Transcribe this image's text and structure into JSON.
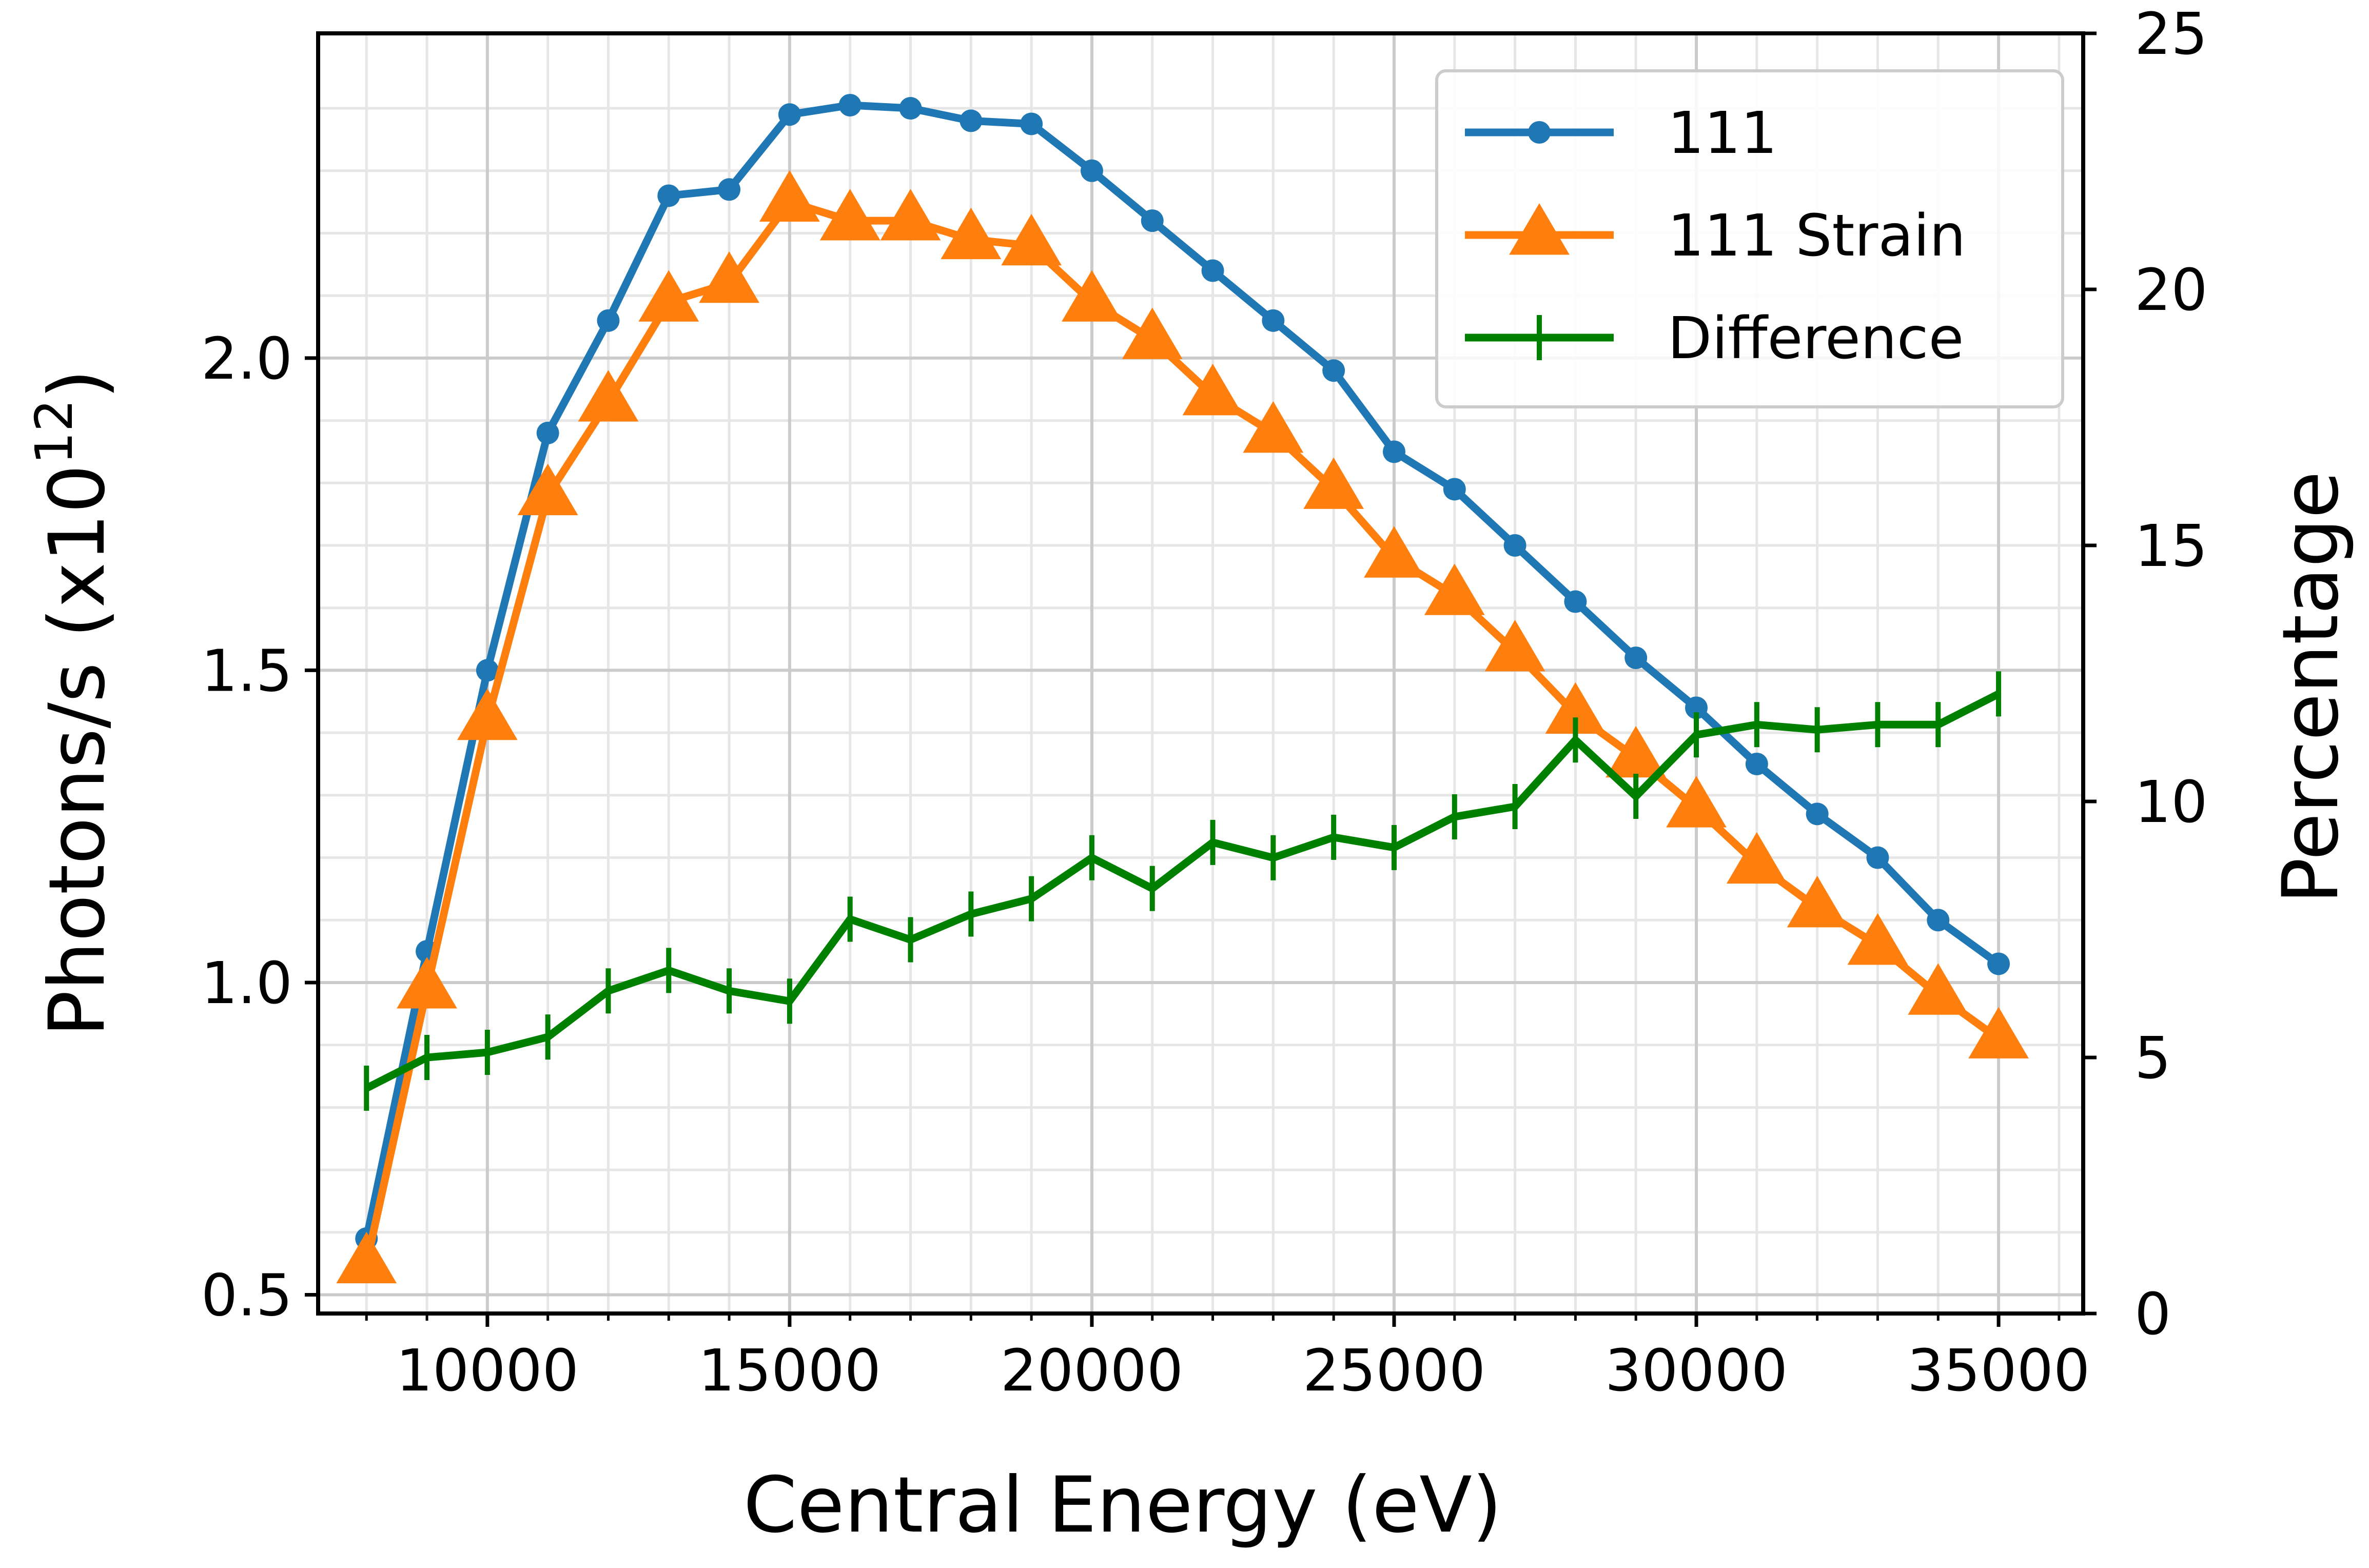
{
  "chart_data": {
    "type": "line",
    "xlabel": "Central Energy (eV)",
    "ylabel": "Photons/s (x10",
    "ylabel_exponent": "12",
    "ylabel_suffix": ")",
    "y2label": "Percentage",
    "xlim": [
      7200,
      36400
    ],
    "ylim": [
      0.47,
      2.52
    ],
    "y2lim": [
      0,
      25
    ],
    "x_ticks": [
      10000,
      15000,
      20000,
      25000,
      30000,
      35000
    ],
    "y_ticks": [
      0.5,
      1.0,
      1.5,
      2.0
    ],
    "y_tick_labels": [
      "0.5",
      "1.0",
      "1.5",
      "2.0"
    ],
    "y2_ticks": [
      0,
      5,
      10,
      15,
      20,
      25
    ],
    "grid": true,
    "legend_position": "top-right",
    "x": [
      8000,
      9000,
      10000,
      11000,
      12000,
      13000,
      14000,
      15000,
      16000,
      17000,
      18000,
      19000,
      20000,
      21000,
      22000,
      23000,
      24000,
      25000,
      26000,
      27000,
      28000,
      29000,
      30000,
      31000,
      32000,
      33000,
      34000,
      35000
    ],
    "series": [
      {
        "name": "111",
        "axis": "left",
        "color": "#1f77b4",
        "marker": "circle",
        "values": [
          0.59,
          1.05,
          1.5,
          1.88,
          2.06,
          2.26,
          2.27,
          2.39,
          2.405,
          2.4,
          2.38,
          2.375,
          2.3,
          2.22,
          2.14,
          2.06,
          1.98,
          1.85,
          1.79,
          1.7,
          1.61,
          1.52,
          1.44,
          1.35,
          1.27,
          1.2,
          1.1,
          1.03
        ]
      },
      {
        "name": "111 Strain",
        "axis": "left",
        "color": "#ff7f0e",
        "marker": "triangle",
        "values": [
          0.55,
          0.99,
          1.42,
          1.78,
          1.93,
          2.09,
          2.12,
          2.25,
          2.22,
          2.22,
          2.19,
          2.18,
          2.09,
          2.03,
          1.94,
          1.88,
          1.79,
          1.68,
          1.62,
          1.53,
          1.43,
          1.36,
          1.28,
          1.19,
          1.12,
          1.06,
          0.98,
          0.91
        ]
      },
      {
        "name": "Difference",
        "axis": "right",
        "color": "#008000",
        "marker": "vline",
        "values": [
          4.4,
          5.0,
          5.1,
          5.4,
          6.3,
          6.7,
          6.3,
          6.1,
          7.7,
          7.3,
          7.8,
          8.1,
          8.9,
          8.3,
          9.2,
          8.9,
          9.3,
          9.1,
          9.7,
          9.9,
          11.2,
          10.1,
          11.3,
          11.5,
          11.4,
          11.5,
          11.5,
          12.1
        ]
      }
    ]
  }
}
